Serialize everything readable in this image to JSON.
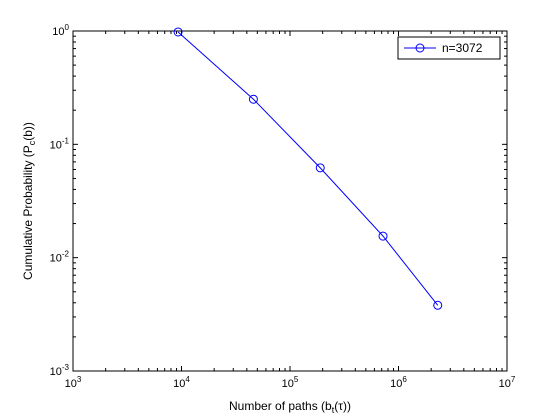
{
  "chart_data": {
    "type": "line",
    "x_scale": "log",
    "y_scale": "log",
    "xlim": [
      1000,
      10000000
    ],
    "ylim": [
      0.001,
      1
    ],
    "x_ticks": [
      {
        "base": "10",
        "exp": "3",
        "value": 1000
      },
      {
        "base": "10",
        "exp": "4",
        "value": 10000
      },
      {
        "base": "10",
        "exp": "5",
        "value": 100000
      },
      {
        "base": "10",
        "exp": "6",
        "value": 1000000
      },
      {
        "base": "10",
        "exp": "7",
        "value": 10000000
      }
    ],
    "y_ticks": [
      {
        "base": "10",
        "exp": "-3",
        "value": 0.001
      },
      {
        "base": "10",
        "exp": "-2",
        "value": 0.01
      },
      {
        "base": "10",
        "exp": "-1",
        "value": 0.1
      },
      {
        "base": "10",
        "exp": "0",
        "value": 1
      }
    ],
    "xlabel": {
      "pre": "Number of paths (b",
      "sub": "t",
      "post": "(τ))"
    },
    "ylabel": {
      "pre": "Cumulative Probability (P",
      "sub": "c",
      "post": "(b))"
    },
    "grid": false,
    "legend_position": "top-right",
    "series": [
      {
        "name": "n=3072",
        "color": "#0000ff",
        "marker": "circle",
        "x": [
          9300,
          46000,
          190000,
          720000,
          2300000
        ],
        "y": [
          0.98,
          0.25,
          0.062,
          0.0155,
          0.0038
        ]
      }
    ]
  }
}
